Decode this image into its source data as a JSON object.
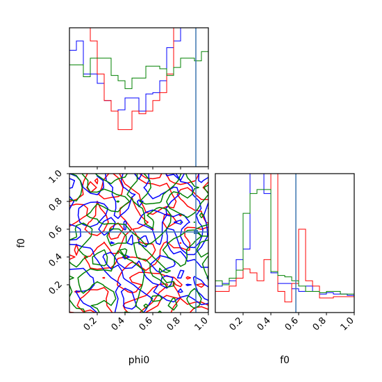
{
  "chart_data": {
    "type": "corner",
    "parameters": [
      "phi0",
      "f0"
    ],
    "truths": {
      "phi0": 0.91,
      "f0": 0.58
    },
    "truth_color": "#3b75af",
    "series_colors": {
      "a": "#0000ff",
      "b": "#ff0000",
      "c": "#008000"
    },
    "panels": [
      {
        "id": "hist_phi0",
        "type": "histogram",
        "x_range": [
          0,
          1
        ],
        "series": [
          {
            "key": "a",
            "color": "#0000ff",
            "bins": [
              0.0,
              0.05,
              0.1,
              0.15,
              0.2,
              0.25,
              0.3,
              0.35,
              0.4,
              0.45,
              0.5,
              0.55,
              0.6,
              0.65,
              0.7,
              0.75,
              0.8,
              0.85,
              0.9,
              0.95,
              1.0
            ],
            "heights": [
              0.88,
              0.95,
              0.7,
              0.7,
              0.63,
              0.5,
              0.42,
              0.43,
              0.52,
              0.52,
              0.42,
              0.55,
              0.56,
              0.65,
              0.9,
              0.95,
              1.05,
              1.05,
              1.05,
              1.05
            ]
          },
          {
            "key": "b",
            "color": "#ff0000",
            "bins": [
              0.0,
              0.05,
              0.1,
              0.15,
              0.2,
              0.25,
              0.3,
              0.35,
              0.4,
              0.45,
              0.5,
              0.55,
              0.6,
              0.65,
              0.7,
              0.75,
              0.8,
              0.85,
              0.9,
              0.95,
              1.0
            ],
            "heights": [
              1.05,
              1.05,
              1.05,
              0.95,
              0.7,
              0.5,
              0.42,
              0.28,
              0.28,
              0.42,
              0.4,
              0.42,
              0.5,
              0.56,
              0.7,
              1.05,
              1.05,
              1.05,
              1.05,
              1.05
            ]
          },
          {
            "key": "c",
            "color": "#008000",
            "bins": [
              0.0,
              0.05,
              0.1,
              0.15,
              0.2,
              0.25,
              0.3,
              0.35,
              0.4,
              0.45,
              0.5,
              0.55,
              0.6,
              0.65,
              0.7,
              0.75,
              0.8,
              0.85,
              0.9,
              0.95,
              1.0
            ],
            "heights": [
              0.77,
              0.77,
              0.68,
              0.82,
              0.82,
              0.82,
              0.69,
              0.65,
              0.59,
              0.67,
              0.67,
              0.76,
              0.76,
              0.74,
              0.69,
              0.75,
              0.82,
              0.82,
              0.8,
              0.87
            ]
          }
        ]
      },
      {
        "id": "contour_phi0_f0",
        "type": "contour",
        "x_range": [
          0,
          1
        ],
        "y_range": [
          0,
          1
        ],
        "x_ticks": [
          "0.2",
          "0.4",
          "0.6",
          "0.8",
          "1.0"
        ],
        "y_ticks": [
          "0.2",
          "0.4",
          "0.6",
          "0.8",
          "1.0"
        ],
        "x_label": "phi0",
        "y_label": "f0"
      },
      {
        "id": "hist_f0",
        "type": "histogram",
        "x_range": [
          0,
          1
        ],
        "x_ticks": [
          "0.2",
          "0.4",
          "0.6",
          "0.8",
          "1.0"
        ],
        "x_label": "f0",
        "series": [
          {
            "key": "a",
            "color": "#0000ff",
            "bins": [
              0.0,
              0.05,
              0.1,
              0.15,
              0.2,
              0.25,
              0.3,
              0.35,
              0.4,
              0.45,
              0.5,
              0.55,
              0.6,
              0.65,
              0.7,
              0.75,
              0.8,
              0.85,
              0.9,
              0.95,
              1.0
            ],
            "heights": [
              0.2,
              0.22,
              0.24,
              0.4,
              0.48,
              1.05,
              1.05,
              0.9,
              0.3,
              0.22,
              0.22,
              0.18,
              0.16,
              0.2,
              0.16,
              0.14,
              0.15,
              0.14,
              0.14,
              0.13
            ]
          },
          {
            "key": "b",
            "color": "#ff0000",
            "bins": [
              0.0,
              0.05,
              0.1,
              0.15,
              0.2,
              0.25,
              0.3,
              0.35,
              0.4,
              0.45,
              0.5,
              0.55,
              0.6,
              0.65,
              0.7,
              0.75,
              0.8,
              0.85,
              0.9,
              0.95,
              1.0
            ],
            "heights": [
              0.16,
              0.16,
              0.2,
              0.26,
              0.33,
              0.3,
              0.24,
              0.4,
              1.05,
              0.16,
              0.08,
              0.22,
              0.63,
              0.24,
              0.2,
              0.11,
              0.11,
              0.12,
              0.12,
              0.12
            ]
          },
          {
            "key": "c",
            "color": "#008000",
            "bins": [
              0.0,
              0.05,
              0.1,
              0.15,
              0.2,
              0.25,
              0.3,
              0.35,
              0.4,
              0.45,
              0.5,
              0.55,
              0.6,
              0.65,
              0.7,
              0.75,
              0.8,
              0.85,
              0.9,
              0.95,
              1.0
            ],
            "heights": [
              0.24,
              0.21,
              0.26,
              0.32,
              0.75,
              0.9,
              0.93,
              0.93,
              0.31,
              0.28,
              0.27,
              0.24,
              0.2,
              0.16,
              0.16,
              0.15,
              0.16,
              0.16,
              0.14,
              0.14
            ]
          }
        ]
      }
    ]
  }
}
